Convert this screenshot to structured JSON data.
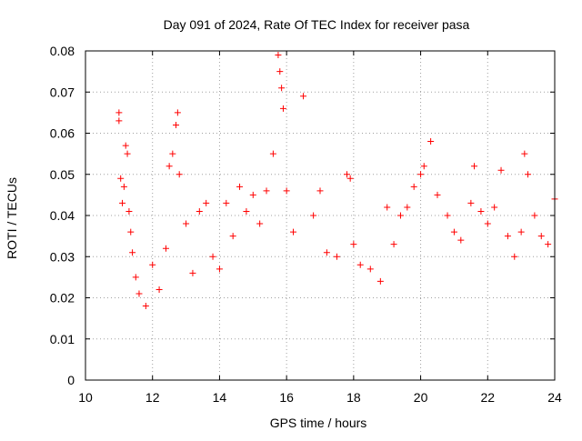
{
  "chart_data": {
    "type": "scatter",
    "title": "Day 091 of 2024, Rate Of TEC Index for receiver pasa",
    "xlabel": "GPS time / hours",
    "ylabel": "ROTI / TECUs",
    "xlim": [
      10,
      24
    ],
    "ylim": [
      0,
      0.08
    ],
    "xticks": [
      10,
      12,
      14,
      16,
      18,
      20,
      22,
      24
    ],
    "yticks": [
      0,
      0.01,
      0.02,
      0.03,
      0.04,
      0.05,
      0.06,
      0.07,
      0.08
    ],
    "xtick_labels": [
      "10",
      "12",
      "14",
      "16",
      "18",
      "20",
      "22",
      "24"
    ],
    "ytick_labels": [
      "0",
      "0.01",
      "0.02",
      "0.03",
      "0.04",
      "0.05",
      "0.06",
      "0.07",
      "0.08"
    ],
    "grid": true,
    "marker": "+",
    "color": "#ff0000",
    "series": [
      {
        "name": "ROTI",
        "x": [
          11.0,
          11.0,
          11.05,
          11.1,
          11.15,
          11.2,
          11.25,
          11.3,
          11.35,
          11.4,
          11.5,
          11.6,
          11.8,
          12.0,
          12.2,
          12.4,
          12.5,
          12.6,
          12.7,
          12.75,
          12.8,
          13.0,
          13.2,
          13.4,
          13.6,
          13.8,
          14.0,
          14.2,
          14.4,
          14.6,
          14.8,
          15.0,
          15.2,
          15.4,
          15.6,
          15.75,
          15.8,
          15.85,
          15.9,
          16.0,
          16.2,
          16.5,
          16.8,
          17.0,
          17.2,
          17.5,
          17.8,
          17.9,
          18.0,
          18.2,
          18.5,
          18.8,
          19.0,
          19.2,
          19.4,
          19.6,
          19.8,
          20.0,
          20.1,
          20.3,
          20.5,
          20.8,
          21.0,
          21.2,
          21.5,
          21.6,
          21.8,
          22.0,
          22.2,
          22.4,
          22.6,
          22.8,
          23.0,
          23.1,
          23.2,
          23.4,
          23.6,
          23.8,
          24.0
        ],
        "y": [
          0.065,
          0.063,
          0.049,
          0.043,
          0.047,
          0.057,
          0.055,
          0.041,
          0.036,
          0.031,
          0.025,
          0.021,
          0.018,
          0.028,
          0.022,
          0.032,
          0.052,
          0.055,
          0.062,
          0.065,
          0.05,
          0.038,
          0.026,
          0.041,
          0.043,
          0.03,
          0.027,
          0.043,
          0.035,
          0.047,
          0.041,
          0.045,
          0.038,
          0.046,
          0.055,
          0.079,
          0.075,
          0.071,
          0.066,
          0.046,
          0.036,
          0.069,
          0.04,
          0.046,
          0.031,
          0.03,
          0.05,
          0.049,
          0.033,
          0.028,
          0.027,
          0.024,
          0.042,
          0.033,
          0.04,
          0.042,
          0.047,
          0.05,
          0.052,
          0.058,
          0.045,
          0.04,
          0.036,
          0.034,
          0.043,
          0.052,
          0.041,
          0.038,
          0.042,
          0.051,
          0.035,
          0.03,
          0.036,
          0.055,
          0.05,
          0.04,
          0.035,
          0.033,
          0.044
        ]
      }
    ]
  }
}
